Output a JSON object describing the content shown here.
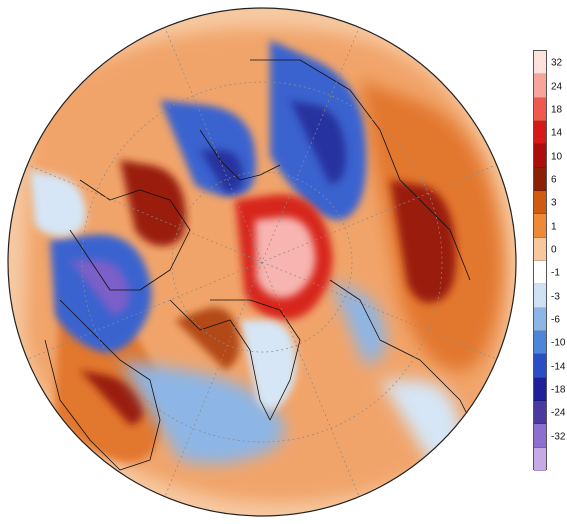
{
  "colorbar": {
    "levels": [
      "32",
      "24",
      "18",
      "14",
      "10",
      "6",
      "3",
      "1",
      "0",
      "-1",
      "-3",
      "-6",
      "-10",
      "-14",
      "-18",
      "-24",
      "-32"
    ],
    "colors": [
      "#fde3db",
      "#f6a49c",
      "#ee5a4f",
      "#d71818",
      "#ad0c0c",
      "#8a2004",
      "#cf5a12",
      "#ee8a36",
      "#f7c89e",
      "#ffffff",
      "#cfe1f4",
      "#8db6e6",
      "#4d86d8",
      "#2c4ec4",
      "#1f1f9a",
      "#4a3a9e",
      "#8d6fcd",
      "#c7a9e6"
    ]
  },
  "map": {
    "projection": "polar-stereographic",
    "palette": {
      "ocean_base": "#f6c9a2",
      "warm_light": "#f1a46a",
      "warm": "#e2772e",
      "warm_dark": "#b34a12",
      "hot": "#9a1a0a",
      "red": "#d7281f",
      "pink": "#f7b4b0",
      "cool_light": "#d6e6f6",
      "cool": "#8db6e6",
      "cold": "#3a63cf",
      "very_cold": "#27309f",
      "purple": "#7c5fc8",
      "grid": "#8a8a8a",
      "coast": "#111111"
    }
  }
}
